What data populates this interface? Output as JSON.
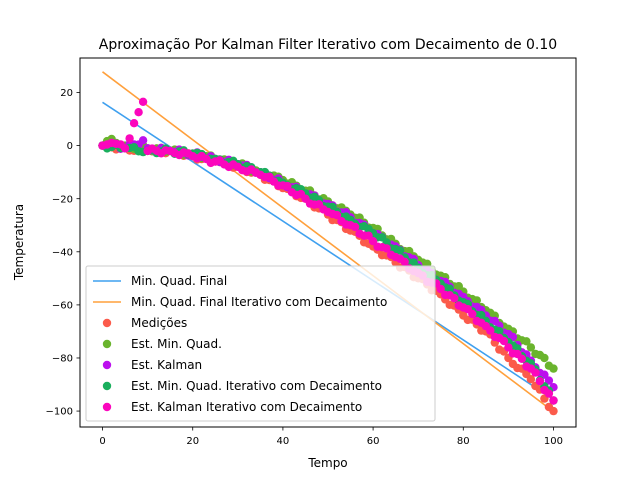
{
  "chart_data": {
    "type": "scatter",
    "title": "Aproximação Por Kalman Filter Iterativo com Decaimento de 0.10",
    "xlabel": "Tempo",
    "ylabel": "Temperatura",
    "xlim": [
      -5,
      105
    ],
    "ylim": [
      -106,
      33
    ],
    "xticks": [
      0,
      20,
      40,
      60,
      80,
      100
    ],
    "yticks": [
      20,
      0,
      -20,
      -40,
      -60,
      -80,
      -100
    ],
    "xtick_labels": [
      "0",
      "20",
      "40",
      "60",
      "80",
      "100"
    ],
    "ytick_labels": [
      "20",
      "0",
      "−20",
      "−40",
      "−60",
      "−80",
      "−100"
    ],
    "grid": false,
    "legend_position": "lower-left",
    "lines": [
      {
        "name": "Min. Quad. Final",
        "color": "#3fa0ef",
        "x": [
          0,
          100
        ],
        "y": [
          16.3,
          -95.6
        ]
      },
      {
        "name": "Min. Quad. Final Iterativo com Decaimento",
        "color": "#ffa03c",
        "x": [
          0,
          100
        ],
        "y": [
          27.8,
          -100.2
        ]
      }
    ],
    "series": [
      {
        "name": "Medições",
        "color": "#fb5b4b",
        "x": [
          0,
          5,
          10,
          15,
          20,
          25,
          30,
          35,
          40,
          45,
          50,
          55,
          60,
          65,
          70,
          75,
          80,
          85,
          90,
          95,
          100
        ],
        "y": [
          0,
          -1,
          -2,
          -2,
          -4,
          -6,
          -8,
          -11,
          -16,
          -20,
          -26,
          -32,
          -38,
          -44,
          -50,
          -56,
          -64,
          -70,
          -80,
          -88,
          -100
        ]
      },
      {
        "name": "Est. Min. Quad.",
        "color": "#6ab42d",
        "x": [
          0,
          2,
          5,
          10,
          15,
          20,
          25,
          30,
          35,
          40,
          45,
          50,
          55,
          60,
          65,
          70,
          75,
          80,
          85,
          90,
          95,
          100
        ],
        "y": [
          0,
          2.5,
          0,
          -1,
          -2,
          -3,
          -5,
          -7,
          -10,
          -13,
          -17,
          -21,
          -26,
          -31,
          -37,
          -43,
          -49,
          -55,
          -62,
          -69,
          -76,
          -84
        ]
      },
      {
        "name": "Est. Kalman",
        "color": "#bc0fee",
        "x": [
          0,
          2,
          5,
          9,
          10,
          15,
          20,
          25,
          30,
          35,
          40,
          45,
          50,
          55,
          60,
          65,
          70,
          75,
          80,
          85,
          90,
          95,
          100
        ],
        "y": [
          0,
          1,
          -1,
          2,
          -1,
          -2,
          -3,
          -5,
          -7,
          -10,
          -14,
          -18,
          -22,
          -27,
          -33,
          -38,
          -45,
          -51,
          -57,
          -64,
          -71,
          -81,
          -91
        ]
      },
      {
        "name": "Est. Min. Quad. Iterativo com Decaimento",
        "color": "#1aaf5d",
        "x": [
          0,
          5,
          10,
          15,
          20,
          25,
          30,
          35,
          40,
          45,
          50,
          55,
          60,
          65,
          70,
          75,
          80,
          85,
          90,
          95,
          100
        ],
        "y": [
          0,
          -1,
          -2,
          -2,
          -3,
          -5,
          -7,
          -10,
          -14,
          -18,
          -23,
          -28,
          -33,
          -39,
          -46,
          -52,
          -59,
          -66,
          -74,
          -82,
          -96
        ]
      },
      {
        "name": "Est. Kalman Iterativo com Decaimento",
        "color": "#fb06bd",
        "x": [
          0,
          2,
          5,
          9,
          10,
          15,
          20,
          25,
          30,
          35,
          40,
          45,
          50,
          55,
          60,
          65,
          70,
          75,
          80,
          85,
          90,
          95,
          100
        ],
        "y": [
          0,
          1,
          -1,
          16.5,
          -2,
          -2,
          -4,
          -6,
          -8,
          -11,
          -15,
          -20,
          -25,
          -30,
          -36,
          -42,
          -48,
          -54,
          -61,
          -68,
          -76,
          -84,
          -96
        ]
      }
    ]
  }
}
